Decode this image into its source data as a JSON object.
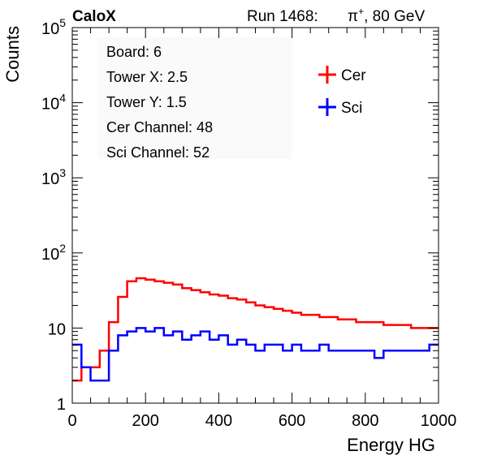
{
  "header": {
    "experiment": "CaloX",
    "run_label": "Run 1468:",
    "beam": "π",
    "beam_charge": "+",
    "beam_energy": ", 80 GeV"
  },
  "info_box": {
    "lines": [
      "Board: 6",
      "Tower X: 2.5",
      "Tower Y: 1.5",
      "Cer Channel: 48",
      "Sci Channel: 52"
    ]
  },
  "colors": {
    "cer": "#ff0000",
    "sci": "#0000ff"
  },
  "chart_data": {
    "type": "line",
    "xlabel": "Energy HG",
    "ylabel": "Counts",
    "xlim": [
      0,
      1000
    ],
    "ylim": [
      1,
      100000
    ],
    "yscale": "log",
    "x_ticks": [
      0,
      200,
      400,
      600,
      800,
      1000
    ],
    "y_tick_labels": [
      {
        "value": 1,
        "label": "1"
      },
      {
        "value": 10,
        "label": "10"
      },
      {
        "value": 100,
        "label": "10",
        "exp": "2"
      },
      {
        "value": 1000,
        "label": "10",
        "exp": "3"
      },
      {
        "value": 10000,
        "label": "10",
        "exp": "4"
      },
      {
        "value": 100000,
        "label": "10",
        "exp": "5"
      }
    ],
    "legend": {
      "position": "top-right"
    },
    "series": [
      {
        "name": "Cer",
        "color": "#ff0000",
        "x": [
          0,
          25,
          50,
          75,
          100,
          125,
          150,
          175,
          200,
          225,
          250,
          275,
          300,
          325,
          350,
          375,
          400,
          425,
          450,
          475,
          500,
          525,
          550,
          575,
          600,
          625,
          650,
          675,
          700,
          725,
          750,
          775,
          800,
          825,
          850,
          875,
          900,
          925,
          950,
          975,
          1000
        ],
        "values": [
          2,
          3,
          3,
          5,
          12,
          26,
          42,
          46,
          44,
          42,
          40,
          38,
          34,
          32,
          30,
          28,
          27,
          25,
          24,
          22,
          20,
          19,
          18,
          17,
          16,
          15,
          15,
          14,
          14,
          13,
          13,
          12,
          12,
          12,
          11,
          11,
          11,
          10,
          10,
          10,
          10
        ]
      },
      {
        "name": "Sci",
        "color": "#0000ff",
        "x": [
          0,
          25,
          50,
          75,
          100,
          125,
          150,
          175,
          200,
          225,
          250,
          275,
          300,
          325,
          350,
          375,
          400,
          425,
          450,
          475,
          500,
          525,
          550,
          575,
          600,
          625,
          650,
          675,
          700,
          725,
          750,
          775,
          800,
          825,
          850,
          875,
          900,
          925,
          950,
          975,
          1000
        ],
        "values": [
          6,
          3,
          2,
          2,
          5,
          8,
          9,
          10,
          9,
          10,
          8,
          9,
          7,
          8,
          9,
          7,
          8,
          6,
          7,
          6,
          5,
          6,
          6,
          5,
          6,
          5,
          5,
          6,
          5,
          5,
          5,
          5,
          5,
          4,
          5,
          5,
          5,
          5,
          5,
          6,
          6
        ]
      }
    ]
  }
}
